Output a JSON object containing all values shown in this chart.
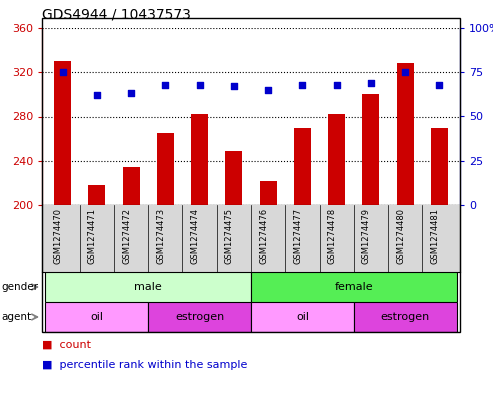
{
  "title": "GDS4944 / 10437573",
  "samples": [
    "GSM1274470",
    "GSM1274471",
    "GSM1274472",
    "GSM1274473",
    "GSM1274474",
    "GSM1274475",
    "GSM1274476",
    "GSM1274477",
    "GSM1274478",
    "GSM1274479",
    "GSM1274480",
    "GSM1274481"
  ],
  "counts": [
    330,
    218,
    234,
    265,
    282,
    249,
    222,
    270,
    282,
    300,
    328,
    270
  ],
  "percentiles": [
    75,
    62,
    63,
    68,
    68,
    67,
    65,
    68,
    68,
    69,
    75,
    68
  ],
  "ylim_left": [
    200,
    360
  ],
  "ylim_right": [
    0,
    100
  ],
  "yticks_left": [
    200,
    240,
    280,
    320,
    360
  ],
  "yticks_right": [
    0,
    25,
    50,
    75,
    100
  ],
  "bar_color": "#cc0000",
  "dot_color": "#0000cc",
  "gender_male_color": "#ccffcc",
  "gender_female_color": "#55ee55",
  "agent_oil_color": "#ff99ff",
  "agent_estrogen_color": "#dd44dd",
  "tick_area_bg": "#d8d8d8",
  "plot_bg": "#ffffff"
}
